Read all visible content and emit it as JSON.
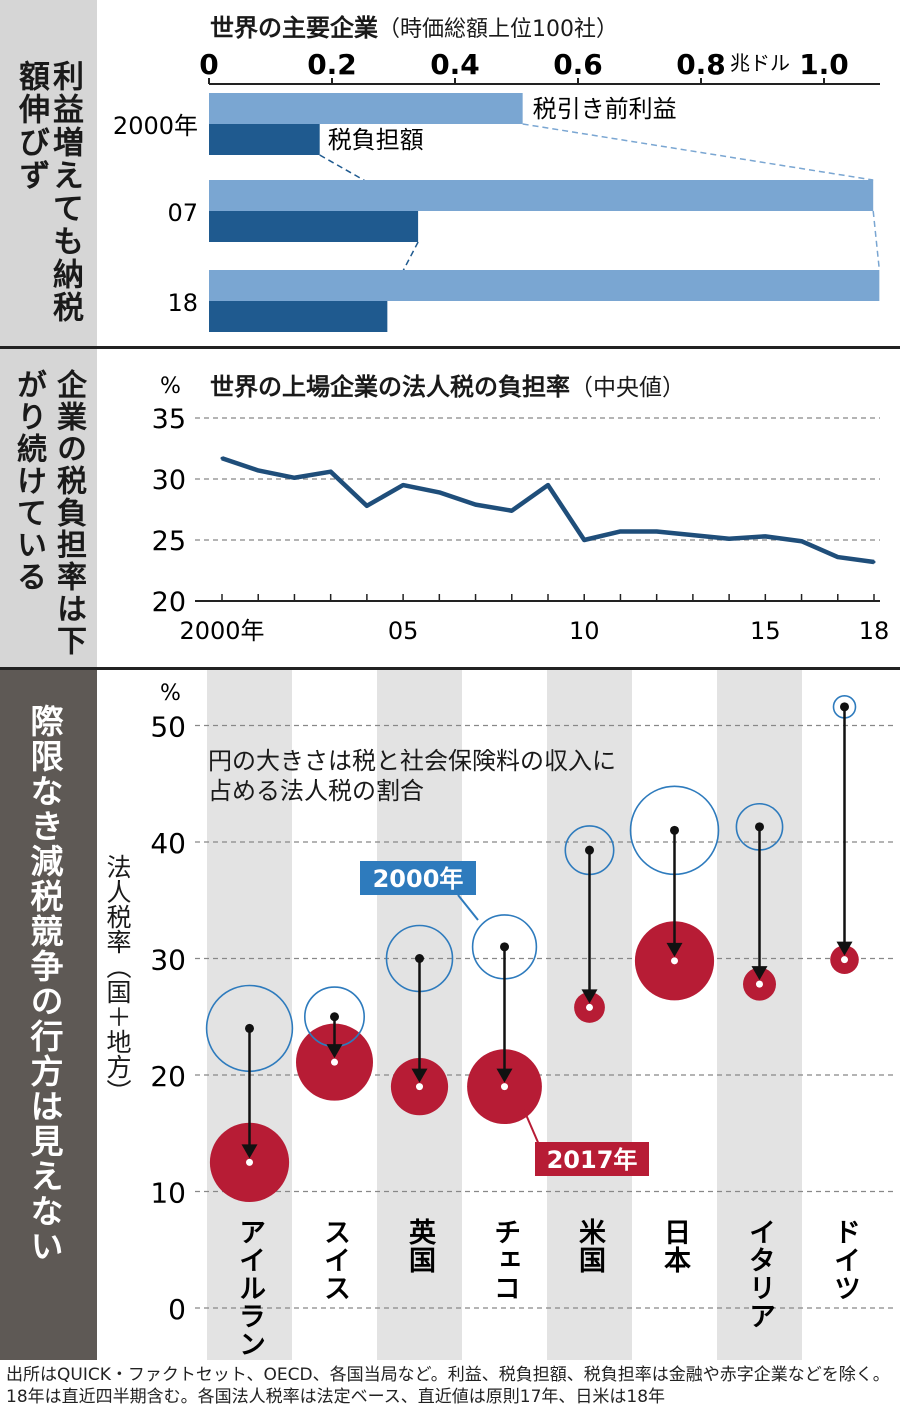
{
  "colors": {
    "sidebar_gray": "#d6d6d6",
    "sidebar_dark": "#5e5955",
    "bar_light": "#7aa6d2",
    "bar_dark": "#1f5a8f",
    "line_blue": "#1f4e7a",
    "red": "#b71c35",
    "blue_label": "#2e7bbd",
    "stripe": "#e3e3e3"
  },
  "panel1": {
    "side_title": "利益増えても納税額伸びず",
    "title": "世界の主要企業",
    "subtitle": "（時価総額上位100社）",
    "unit": "兆ドル",
    "label_pretax": "税引き前利益",
    "label_tax": "税負担額"
  },
  "panel2": {
    "side_title": "企業の税負担率は下がり続けている",
    "title": "世界の上場企業の法人税の負担率",
    "subtitle": "（中央値）",
    "unit": "%"
  },
  "panel3": {
    "side_title": "際限なき減税競争の行方は見えない",
    "unit": "%",
    "ylabel": "法人税率（国＋地方）",
    "note": "円の大きさは税と社会保険料の収入に占める法人税の割合",
    "badge_2000": "2000年",
    "badge_2017": "2017年"
  },
  "footer": {
    "text": "出所はQUICK・ファクトセット、OECD、各国当局など。利益、税負担額、税負担率は金融や赤字企業などを除く。18年は直近四半期含む。各国法人税率は法定ベース、直近値は原則17年、日米は18年"
  },
  "chart_data": [
    {
      "type": "bar",
      "title": "世界の主要企業（時価総額上位100社）",
      "xlabel": "兆ドル",
      "xlim": [
        0,
        1.1
      ],
      "xticks": [
        "0",
        "0.2",
        "0.4",
        "0.6",
        "0.8",
        "1.0"
      ],
      "categories": [
        "2000年",
        "07",
        "18"
      ],
      "series": [
        {
          "name": "税引き前利益",
          "values": [
            0.51,
            1.08,
            1.09
          ]
        },
        {
          "name": "税負担額",
          "values": [
            0.18,
            0.34,
            0.29
          ]
        }
      ]
    },
    {
      "type": "line",
      "title": "世界の上場企業の法人税の負担率（中央値）",
      "ylabel": "%",
      "ylim": [
        20,
        35
      ],
      "yticks": [
        20,
        25,
        30,
        35
      ],
      "x": [
        2000,
        2001,
        2002,
        2003,
        2004,
        2005,
        2006,
        2007,
        2008,
        2009,
        2010,
        2011,
        2012,
        2013,
        2014,
        2015,
        2016,
        2017,
        2018
      ],
      "xticks": [
        {
          "value": 2000,
          "label": "2000年"
        },
        {
          "value": 2005,
          "label": "05"
        },
        {
          "value": 2010,
          "label": "10"
        },
        {
          "value": 2015,
          "label": "15"
        },
        {
          "value": 2018,
          "label": "18"
        }
      ],
      "values": [
        31.7,
        30.7,
        30.1,
        30.6,
        27.8,
        29.5,
        28.9,
        27.9,
        27.4,
        29.5,
        25.0,
        25.7,
        25.7,
        25.4,
        25.1,
        25.3,
        24.9,
        23.6,
        23.2
      ]
    },
    {
      "type": "scatter",
      "title": "円の大きさは税と社会保険料の収入に占める法人税の割合",
      "ylabel": "法人税率（国＋地方）",
      "yunit": "%",
      "ylim": [
        0,
        53
      ],
      "yticks": [
        0,
        10,
        20,
        30,
        40,
        50
      ],
      "categories": [
        "アイルランド",
        "スイス",
        "英国",
        "チェコ",
        "米国",
        "日本",
        "イタリア",
        "ドイツ"
      ],
      "series": [
        {
          "name": "2000年",
          "values": [
            24.0,
            25.0,
            30.0,
            31.0,
            39.3,
            41.0,
            41.3,
            51.6
          ],
          "circle_size": [
            3.9,
            2.7,
            3.0,
            2.9,
            2.2,
            4.0,
            2.1,
            1.0
          ]
        },
        {
          "name": "2017年",
          "values": [
            12.5,
            21.1,
            19.0,
            19.0,
            25.8,
            29.8,
            27.8,
            29.9
          ],
          "circle_size": [
            3.6,
            3.5,
            2.6,
            3.4,
            1.4,
            3.6,
            1.5,
            1.3
          ]
        }
      ]
    }
  ]
}
